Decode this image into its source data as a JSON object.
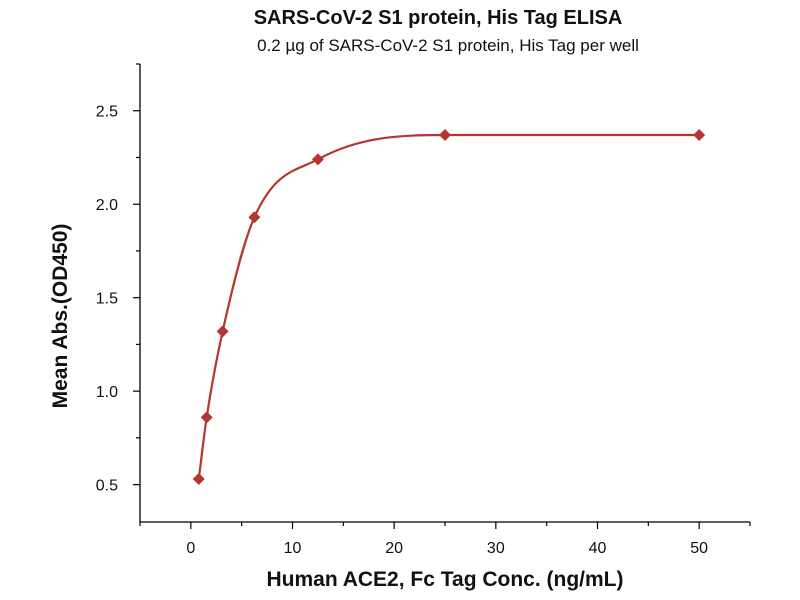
{
  "chart_data": {
    "type": "scatter",
    "title": "SARS-CoV-2 S1 protein, His Tag ELISA",
    "subtitle": "0.2 µg of SARS-CoV-2 S1 protein, His Tag per well",
    "xlabel": "Human ACE2, Fc Tag Conc. (ng/mL)",
    "ylabel": "Mean Abs.(OD450)",
    "xlim": [
      -5,
      55
    ],
    "ylim": [
      0.3,
      2.75
    ],
    "x_ticks": [
      0,
      10,
      20,
      30,
      40,
      50
    ],
    "y_ticks": [
      0.5,
      1.0,
      1.5,
      2.0,
      2.5
    ],
    "x_tick_labels": [
      "0",
      "10",
      "20",
      "30",
      "40",
      "50"
    ],
    "y_tick_labels": [
      "0.5",
      "1.0",
      "1.5",
      "2.0",
      "2.5"
    ],
    "grid": false,
    "series": [
      {
        "marker": "diamond",
        "color": "#b5362e",
        "x": [
          0.78,
          1.56,
          3.13,
          6.25,
          12.5,
          25,
          50
        ],
        "y": [
          0.53,
          0.86,
          1.32,
          1.93,
          2.24,
          2.37,
          2.37
        ],
        "fit_curve": true
      }
    ]
  }
}
